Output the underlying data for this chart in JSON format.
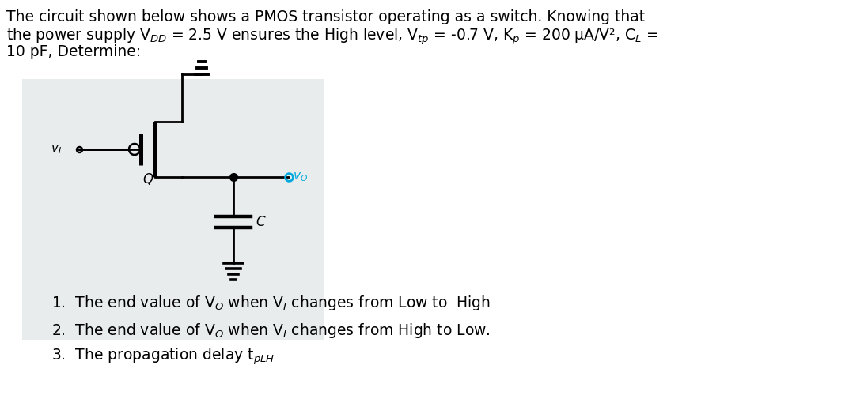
{
  "background_color": "#ffffff",
  "fig_width": 10.92,
  "fig_height": 5.24,
  "dpi": 100,
  "circuit_bg": "#e8ecec",
  "lw": 2.0,
  "color": "#000000",
  "vo_color": "#00aadd",
  "text_fontsize": 13.5,
  "item_fontsize": 13.5,
  "header_lines": [
    "The circuit shown below shows a PMOS transistor operating as a switch. Knowing that",
    "the power supply V$_{DD}$ = 2.5 V ensures the High level, V$_{tp}$ = -0.7 V, K$_p$ = 200 μA/V², C$_L$ =",
    "10 pF, Determine:"
  ],
  "items": [
    "1.  The end value of V$_O$ when V$_I$ changes from Low to  High",
    "2.  The end value of V$_O$ when V$_I$ changes from High to Low.",
    "3.  The propagation delay t$_{pLH}$"
  ]
}
